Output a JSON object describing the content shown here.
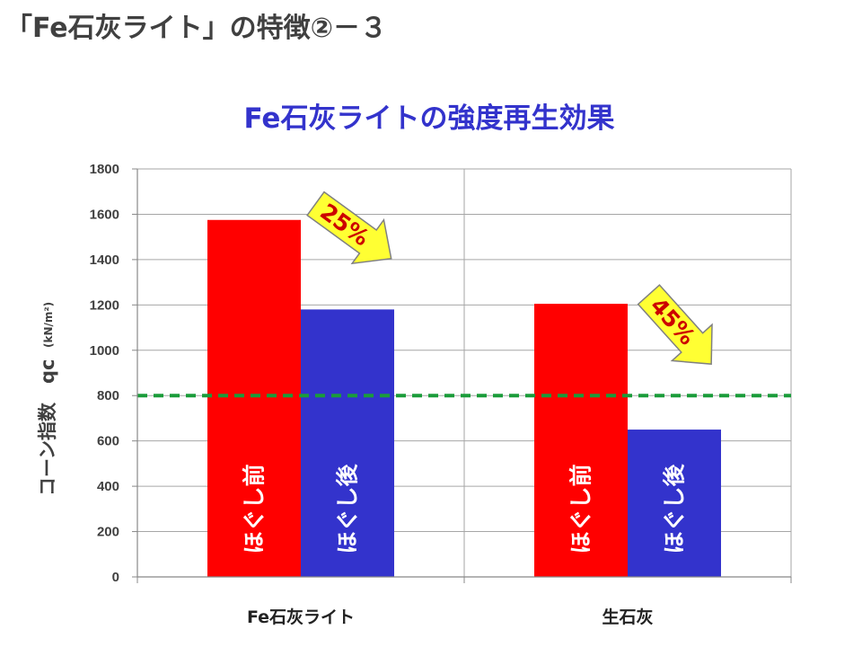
{
  "slide": {
    "title": "「Fe石灰ライト」の特徴②－３"
  },
  "chart_data": {
    "type": "bar",
    "title": "Fe石灰ライトの強度再生効果",
    "ylabel": "コーン指数　qc",
    "yunit": "(kN/m²)",
    "categories": [
      "Fe石灰ライト",
      "生石灰"
    ],
    "series": [
      {
        "name": "ほぐし前",
        "color": "#ff0000",
        "values": [
          1575,
          1205
        ]
      },
      {
        "name": "ほぐし後",
        "color": "#3333cc",
        "values": [
          1180,
          650
        ]
      }
    ],
    "ylim": [
      0,
      1800
    ],
    "yticks": [
      0,
      200,
      400,
      600,
      800,
      1000,
      1200,
      1400,
      1600,
      1800
    ],
    "grid": true,
    "legend": "none",
    "reference_line": {
      "value": 800,
      "color": "#1a9c3a",
      "style": "dashed"
    },
    "annotations": [
      {
        "category": "Fe石灰ライト",
        "text": "25%",
        "text_color": "#cc0000",
        "fill": "#ffff33"
      },
      {
        "category": "生石灰",
        "text": "45%",
        "text_color": "#cc0000",
        "fill": "#ffff33"
      }
    ]
  }
}
